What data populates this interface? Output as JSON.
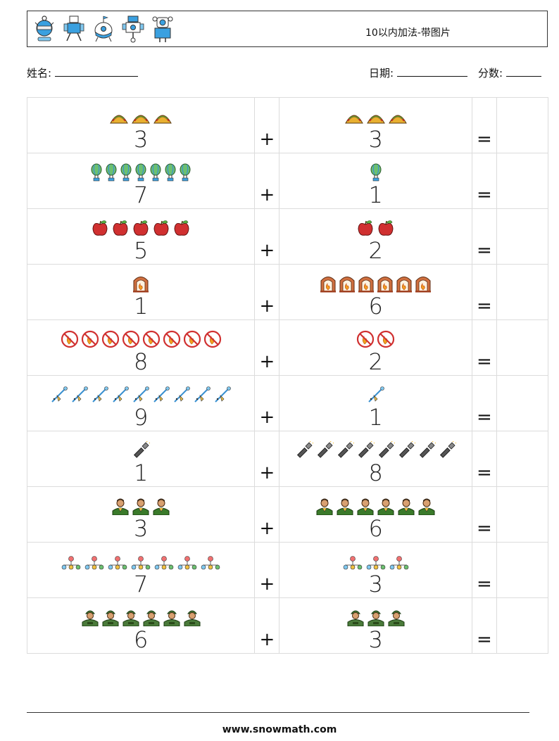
{
  "header": {
    "title": "10以内加法-带图片",
    "icons": [
      "robot-icon-1",
      "robot-icon-2",
      "robot-icon-3",
      "robot-icon-4",
      "robot-icon-5"
    ]
  },
  "info": {
    "name_label": "姓名:",
    "date_label": "日期:",
    "score_label": "分数:"
  },
  "symbols": {
    "plus": "+",
    "equals": "="
  },
  "rows": [
    {
      "a": "3",
      "a_icon": "taco",
      "b": "3",
      "b_icon": "taco"
    },
    {
      "a": "7",
      "a_icon": "balloon",
      "b": "1",
      "b_icon": "balloon"
    },
    {
      "a": "5",
      "a_icon": "apple",
      "b": "2",
      "b_icon": "apple"
    },
    {
      "a": "1",
      "a_icon": "fireplace",
      "b": "6",
      "b_icon": "fireplace"
    },
    {
      "a": "8",
      "a_icon": "no-fire",
      "b": "2",
      "b_icon": "no-fire"
    },
    {
      "a": "9",
      "a_icon": "wand",
      "b": "1",
      "b_icon": "wand"
    },
    {
      "a": "1",
      "a_icon": "flashlight",
      "b": "8",
      "b_icon": "flashlight"
    },
    {
      "a": "3",
      "a_icon": "person",
      "b": "6",
      "b_icon": "person"
    },
    {
      "a": "7",
      "a_icon": "network",
      "b": "3",
      "b_icon": "network"
    },
    {
      "a": "6",
      "a_icon": "soldier",
      "b": "3",
      "b_icon": "soldier"
    }
  ],
  "footer": {
    "url": "www.snowmath.com"
  }
}
